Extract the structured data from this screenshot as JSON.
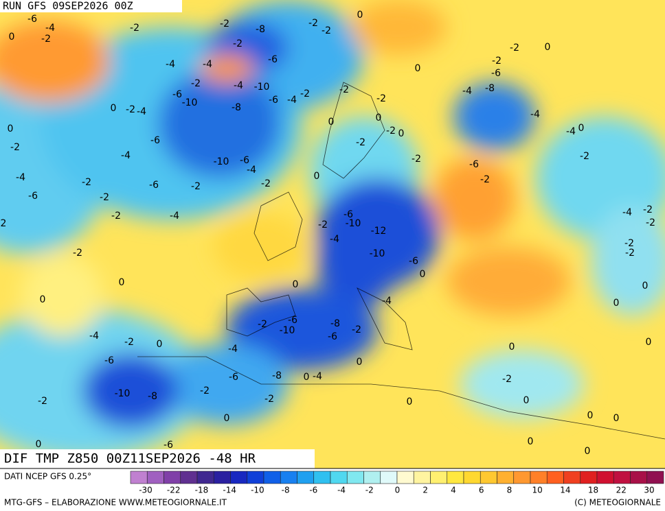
{
  "header": {
    "run": "RUN GFS 09SEP2026 00Z"
  },
  "map_title": "DIF TMP Z850 00Z11SEP2026 -48 HR",
  "legend": {
    "source": "DATI NCEP GFS 0.25°",
    "ticks": [
      "-30",
      "-22",
      "-18",
      "-14",
      "-10",
      "-8",
      "-6",
      "-4",
      "-2",
      "0",
      "2",
      "4",
      "6",
      "8",
      "10",
      "14",
      "18",
      "22",
      "30"
    ],
    "colors": [
      "#c080d0",
      "#a060c0",
      "#8040a8",
      "#603090",
      "#402890",
      "#2a20a0",
      "#1828c0",
      "#1040d8",
      "#1060e8",
      "#1880f0",
      "#20a0f0",
      "#30c0f0",
      "#50d8f0",
      "#80e8f0",
      "#b0f0f0",
      "#e0fafa",
      "#fffad0",
      "#fff4a0",
      "#fff070",
      "#ffe840",
      "#ffd830",
      "#ffc830",
      "#ffb030",
      "#ff9830",
      "#ff8028",
      "#ff6020",
      "#f04020",
      "#e02020",
      "#d01030",
      "#c01040",
      "#a81048",
      "#901050"
    ]
  },
  "footer": {
    "left": "MTG-GFS – ELABORAZIONE WWW.METEOGIORNALE.IT",
    "right": "(C) METEOGIORNALE"
  },
  "map_labels": [
    "-6",
    "-4",
    "-2",
    "0",
    "-2",
    "-2",
    "-8",
    "-2",
    "-2",
    "0",
    "-2",
    "-4",
    "-4",
    "-6",
    "-2",
    "-4",
    "-10",
    "-6",
    "-4",
    "-2",
    "-2",
    "-6",
    "-10",
    "-8",
    "0",
    "-2",
    "-4",
    "0",
    "-2",
    "-6",
    "-4",
    "-10",
    "-6",
    "-4",
    "-4",
    "-2",
    "-6",
    "-2",
    "-2",
    "-6",
    "-2",
    "-2",
    "-4",
    "2",
    "0",
    "-2",
    "0",
    "-2",
    "0",
    "-2",
    "-2",
    "0",
    "-6",
    "-2",
    "-10",
    "-12",
    "-4",
    "-10",
    "-6",
    "0",
    "0",
    "-2",
    "0",
    "0",
    "-4",
    "-2",
    "-6",
    "-10",
    "-8",
    "-6",
    "-2",
    "-4",
    "-2",
    "0",
    "-4",
    "-6",
    "0",
    "-6",
    "-8",
    "0",
    "-4",
    "-10",
    "-8",
    "-2",
    "-2",
    "-2",
    "0",
    "0",
    "-2",
    "0",
    "0",
    "0",
    "0",
    "0",
    "0",
    "-6",
    "0",
    "-2",
    "0",
    "-2",
    "-6",
    "-8",
    "-4",
    "0",
    "-4",
    "-4",
    "0",
    "-6",
    "-2",
    "-2",
    "-4",
    "-2",
    "-2",
    "-2",
    "-2",
    "0",
    "0",
    "0"
  ]
}
